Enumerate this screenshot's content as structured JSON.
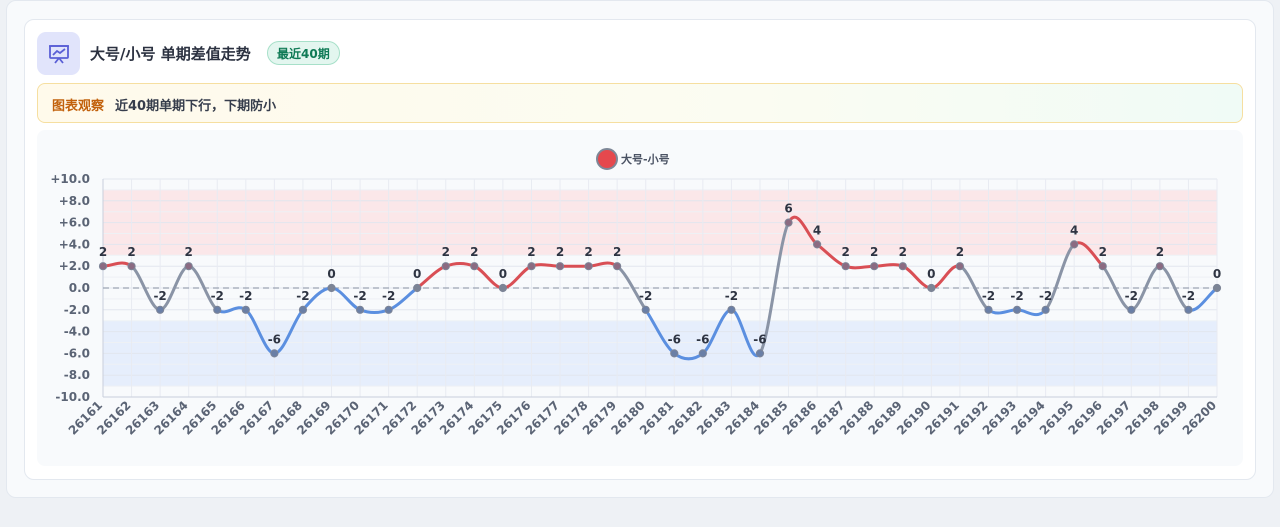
{
  "header": {
    "title": "大号/小号 单期差值走势",
    "badge": "最近40期",
    "icon": "chart-presentation-icon"
  },
  "note": {
    "label": "图表观察",
    "text": "近40期单期下行，下期防小"
  },
  "colors": {
    "up": "#d94f55",
    "down": "#5b8fe0",
    "cross": "#8a94a6",
    "accent": "#5a5fd6",
    "badge_text": "#0f7a55",
    "note_label": "#c2610c"
  },
  "chart_data": {
    "type": "line",
    "legend": "大号-小号",
    "legend_position": "top-center",
    "categories": [
      "26161",
      "26162",
      "26163",
      "26164",
      "26165",
      "26166",
      "26167",
      "26168",
      "26169",
      "26170",
      "26171",
      "26172",
      "26173",
      "26174",
      "26175",
      "26176",
      "26177",
      "26178",
      "26179",
      "26180",
      "26181",
      "26182",
      "26183",
      "26184",
      "26185",
      "26186",
      "26187",
      "26188",
      "26189",
      "26190",
      "26191",
      "26192",
      "26193",
      "26194",
      "26195",
      "26196",
      "26197",
      "26198",
      "26199",
      "26200"
    ],
    "series": [
      {
        "name": "大号-小号",
        "values": [
          2,
          2,
          -2,
          2,
          -2,
          -2,
          -6,
          -2,
          0,
          -2,
          -2,
          0,
          2,
          2,
          0,
          2,
          2,
          2,
          2,
          -2,
          -6,
          -6,
          -2,
          -6,
          6,
          4,
          2,
          2,
          2,
          0,
          2,
          -2,
          -2,
          -2,
          4,
          2,
          -2,
          2,
          -2,
          0
        ]
      }
    ],
    "ylim": [
      -10,
      10
    ],
    "yticks": [
      "+10.0",
      "+8.0",
      "+6.0",
      "+4.0",
      "+2.0",
      "0.0",
      "-2.0",
      "-4.0",
      "-6.0",
      "-8.0",
      "-10.0"
    ],
    "bands": [
      {
        "from": 3,
        "to": 9,
        "color": "#fbe3e5"
      },
      {
        "from": -9,
        "to": -3,
        "color": "#e3ebfb"
      }
    ],
    "zero_line": "dashed",
    "grid": true
  }
}
